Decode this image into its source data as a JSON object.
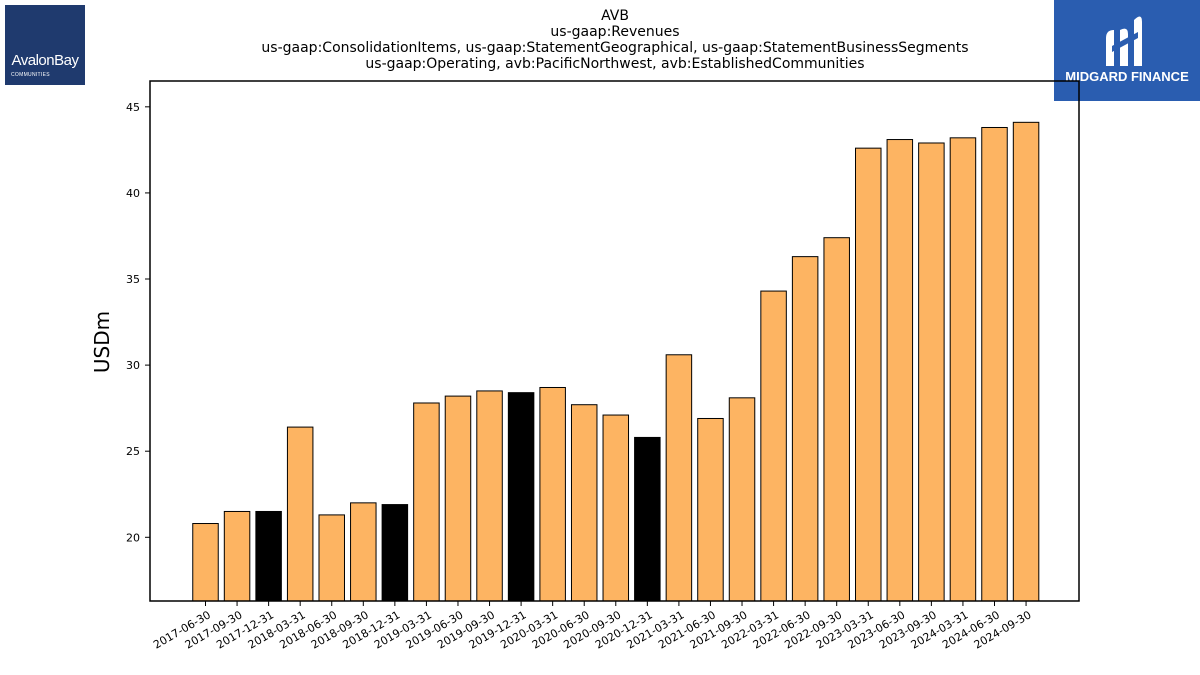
{
  "logos": {
    "left": {
      "name": "AvalonBay",
      "sub": "COMMUNITIES",
      "color": "#1f3a6e"
    },
    "right": {
      "name": "MIDGARD FINANCE",
      "color": "#2a5db0"
    }
  },
  "chart_data": {
    "type": "bar",
    "title_lines": [
      "AVB",
      "us-gaap:Revenues",
      "us-gaap:ConsolidationItems, us-gaap:StatementGeographical, us-gaap:StatementBusinessSegments",
      "us-gaap:Operating, avb:PacificNorthwest, avb:EstablishedCommunities"
    ],
    "xlabel": "",
    "ylabel": "USDm",
    "ylim": [
      16.3,
      46.5
    ],
    "yticks": [
      20,
      25,
      30,
      35,
      40,
      45
    ],
    "grid": false,
    "colors": {
      "default": "#fdb462",
      "highlight": "#000000",
      "edge": "#000000"
    },
    "categories": [
      "2017-06-30",
      "2017-09-30",
      "2017-12-31",
      "2018-03-31",
      "2018-06-30",
      "2018-09-30",
      "2018-12-31",
      "2019-03-31",
      "2019-06-30",
      "2019-09-30",
      "2019-12-31",
      "2020-03-31",
      "2020-06-30",
      "2020-09-30",
      "2020-12-31",
      "2021-03-31",
      "2021-06-30",
      "2021-09-30",
      "2022-03-31",
      "2022-06-30",
      "2022-09-30",
      "2023-03-31",
      "2023-06-30",
      "2023-09-30",
      "2024-03-31",
      "2024-06-30",
      "2024-09-30"
    ],
    "values": [
      20.8,
      21.5,
      21.5,
      26.4,
      21.3,
      22.0,
      21.9,
      27.8,
      28.2,
      28.5,
      28.4,
      28.7,
      27.7,
      27.1,
      25.8,
      30.6,
      26.9,
      28.1,
      34.3,
      36.3,
      37.4,
      42.6,
      43.1,
      42.9,
      43.2,
      43.8,
      44.1
    ],
    "highlight": [
      false,
      false,
      true,
      false,
      false,
      false,
      true,
      false,
      false,
      false,
      true,
      false,
      false,
      false,
      true,
      false,
      false,
      false,
      false,
      false,
      false,
      false,
      false,
      false,
      false,
      false,
      false
    ]
  }
}
